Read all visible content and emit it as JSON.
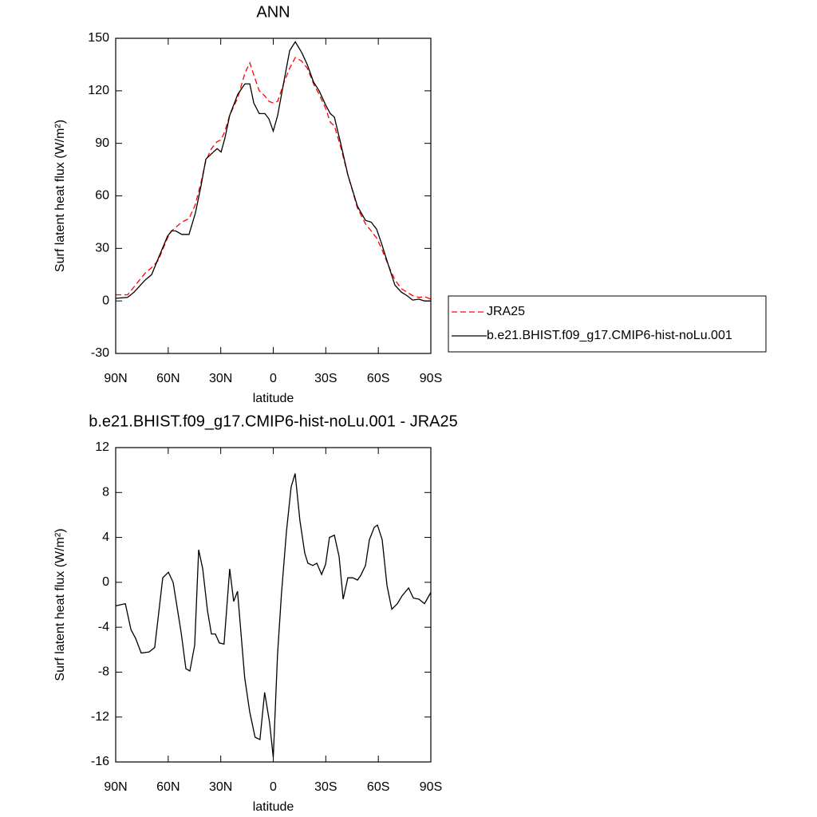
{
  "chart_data": [
    {
      "type": "line",
      "title": "ANN",
      "xlabel": "latitude",
      "ylabel": "Surf latent heat flux (W/m²)",
      "x": [
        90,
        83.2,
        79.5,
        73.1,
        69.5,
        65.8,
        60.4,
        58.1,
        55.8,
        52.2,
        48.1,
        44.5,
        41.2,
        38.5,
        35.3,
        32.1,
        29.8,
        27.6,
        24.9,
        20.3,
        16.2,
        13.4,
        11.1,
        8.0,
        4.8,
        2.5,
        0,
        -2.5,
        -6.2,
        -9.4,
        -12.6,
        -16.2,
        -19.4,
        -23.0,
        -26.2,
        -29.9,
        -32.6,
        -34.9,
        -38.5,
        -42.6,
        -48.1,
        -52.7,
        -55.9,
        -59.0,
        -61.8,
        -65.9,
        -69.5,
        -73.2,
        -76.4,
        -79.6,
        -83.2,
        -86.4,
        -90
      ],
      "series": [
        {
          "name": "JRA25",
          "color": "#ff0000",
          "style": "dashed",
          "values": [
            3.5,
            3.5,
            8,
            16,
            19,
            23,
            36,
            40,
            42,
            45,
            47,
            55,
            68,
            80,
            87,
            91,
            92,
            97,
            106,
            116,
            130,
            136,
            129,
            120,
            117,
            114,
            113,
            114,
            125,
            133,
            139,
            137,
            133,
            124,
            118,
            110,
            102,
            100,
            88,
            72,
            53,
            44,
            40,
            36,
            30,
            20,
            12,
            7,
            5,
            3,
            2,
            2.5,
            1
          ]
        },
        {
          "name": "b.e21.BHIST.f09_g17.CMIP6-hist-noLu.001",
          "color": "#000000",
          "style": "solid",
          "values": [
            1.5,
            2,
            5,
            12,
            15,
            24,
            37,
            40,
            40,
            38,
            38,
            50,
            66,
            81,
            84,
            87,
            85,
            93,
            106,
            118,
            124,
            124,
            113,
            107,
            107,
            104,
            97,
            106,
            126,
            143,
            148,
            142,
            135,
            125,
            120,
            112,
            107,
            105,
            90,
            72,
            54,
            46,
            45,
            41,
            33,
            20,
            9,
            5,
            3,
            0.5,
            1,
            0,
            0
          ]
        }
      ],
      "xlim": [
        90,
        -90
      ],
      "xticks": [
        {
          "value": 90,
          "label": "90N"
        },
        {
          "value": 60,
          "label": "60N"
        },
        {
          "value": 30,
          "label": "30N"
        },
        0,
        {
          "value": -30,
          "label": "30S"
        },
        {
          "value": -60,
          "label": "60S"
        },
        {
          "value": -90,
          "label": "90S"
        }
      ],
      "ylim": [
        -30,
        150
      ],
      "yticks": [
        -30,
        0,
        30,
        60,
        90,
        120,
        150
      ],
      "legend": "right"
    },
    {
      "type": "line",
      "title": "b.e21.BHIST.f09_g17.CMIP6-hist-noLu.001 - JRA25",
      "xlabel": "latitude",
      "ylabel": "Surf latent heat flux (W/m²)",
      "x": [
        90,
        84.5,
        81.3,
        78.6,
        75.4,
        70.9,
        67.7,
        63.1,
        59.9,
        57.2,
        52.6,
        49.9,
        47.6,
        44.9,
        42.6,
        40.3,
        37.6,
        35.3,
        33.1,
        30.8,
        28.1,
        24.9,
        22.6,
        20.4,
        16.3,
        13.5,
        10.4,
        7.6,
        4.9,
        2.1,
        0,
        -2.4,
        -4.7,
        -7.5,
        -10.2,
        -12.5,
        -15.2,
        -18.0,
        -19.8,
        -22.6,
        -24.9,
        -27.6,
        -29.9,
        -32.1,
        -34.9,
        -37.6,
        -39.9,
        -42.6,
        -45.4,
        -48.1,
        -49.9,
        -52.7,
        -54.9,
        -57.7,
        -59.5,
        -62.2,
        -65.0,
        -67.7,
        -70.9,
        -73.6,
        -77.3,
        -80.0,
        -83.2,
        -86.4,
        -90
      ],
      "series": [
        {
          "color": "#000000",
          "style": "solid",
          "values": [
            -2.1,
            -1.9,
            -4.2,
            -5,
            -6.3,
            -6.2,
            -5.8,
            0.4,
            0.9,
            0,
            -4.5,
            -7.7,
            -7.9,
            -5.6,
            2.9,
            1.2,
            -2.5,
            -4.6,
            -4.6,
            -5.4,
            -5.5,
            1.2,
            -1.7,
            -0.8,
            -8.5,
            -11.5,
            -13.8,
            -14,
            -9.8,
            -12.5,
            -15.6,
            -6.5,
            -1,
            4.5,
            8.5,
            9.7,
            5.5,
            2.6,
            1.7,
            1.5,
            1.7,
            0.7,
            1.6,
            4,
            4.2,
            2.3,
            -1.5,
            0.4,
            0.4,
            0.2,
            0.6,
            1.5,
            3.8,
            4.9,
            5.1,
            3.8,
            -0.3,
            -2.4,
            -1.9,
            -1.2,
            -0.5,
            -1.4,
            -1.5,
            -1.9,
            -0.9
          ]
        }
      ],
      "xlim": [
        90,
        -90
      ],
      "xticks": [
        {
          "value": 90,
          "label": "90N"
        },
        {
          "value": 60,
          "label": "60N"
        },
        {
          "value": 30,
          "label": "30N"
        },
        0,
        {
          "value": -30,
          "label": "30S"
        },
        {
          "value": -60,
          "label": "60S"
        },
        {
          "value": -90,
          "label": "90S"
        }
      ],
      "ylim": [
        -16,
        12
      ],
      "yticks": [
        -16,
        -12,
        -8,
        -4,
        0,
        4,
        8,
        12
      ]
    }
  ]
}
